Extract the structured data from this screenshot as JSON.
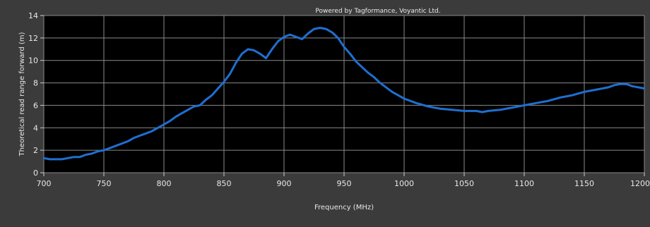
{
  "chart_data": {
    "type": "line",
    "credit": "Powered by Tagformance, Voyantic Ltd.",
    "xlabel": "Frequency (MHz)",
    "ylabel": "Theoretical read range forward (m)",
    "xlim": [
      700,
      1200
    ],
    "ylim": [
      0,
      14
    ],
    "xticks": [
      700,
      750,
      800,
      850,
      900,
      950,
      1000,
      1050,
      1100,
      1150,
      1200
    ],
    "yticks": [
      0,
      2,
      4,
      6,
      8,
      10,
      12,
      14
    ],
    "grid": true,
    "colors": {
      "line": "#1f6fd0",
      "plot_background": "#000000",
      "grid": "#8a8a8a",
      "frame": "#3b3b3b"
    },
    "series": [
      {
        "x": [
          700,
          705,
          710,
          715,
          720,
          725,
          730,
          735,
          740,
          745,
          750,
          755,
          760,
          765,
          770,
          775,
          780,
          785,
          790,
          795,
          800,
          805,
          810,
          815,
          820,
          825,
          830,
          835,
          840,
          845,
          850,
          855,
          860,
          865,
          870,
          875,
          880,
          885,
          890,
          895,
          900,
          905,
          910,
          915,
          920,
          925,
          930,
          935,
          940,
          945,
          950,
          955,
          960,
          965,
          970,
          975,
          980,
          985,
          990,
          995,
          1000,
          1010,
          1020,
          1030,
          1040,
          1050,
          1060,
          1065,
          1070,
          1080,
          1090,
          1100,
          1110,
          1120,
          1130,
          1140,
          1150,
          1160,
          1170,
          1175,
          1180,
          1185,
          1190,
          1195,
          1200
        ],
        "values": [
          1.3,
          1.2,
          1.2,
          1.2,
          1.3,
          1.4,
          1.4,
          1.6,
          1.7,
          1.9,
          2.0,
          2.2,
          2.4,
          2.6,
          2.8,
          3.1,
          3.3,
          3.5,
          3.7,
          4.0,
          4.3,
          4.6,
          5.0,
          5.3,
          5.6,
          5.9,
          6.0,
          6.5,
          6.9,
          7.5,
          8.1,
          8.8,
          9.8,
          10.6,
          11.0,
          10.9,
          10.6,
          10.2,
          11.0,
          11.7,
          12.1,
          12.3,
          12.1,
          11.9,
          12.4,
          12.8,
          12.9,
          12.8,
          12.5,
          12.0,
          11.2,
          10.6,
          9.9,
          9.4,
          8.9,
          8.5,
          8.0,
          7.6,
          7.2,
          6.9,
          6.6,
          6.2,
          5.9,
          5.7,
          5.6,
          5.5,
          5.5,
          5.4,
          5.5,
          5.6,
          5.8,
          6.0,
          6.2,
          6.4,
          6.7,
          6.9,
          7.2,
          7.4,
          7.6,
          7.8,
          7.9,
          7.9,
          7.7,
          7.6,
          7.5
        ]
      }
    ]
  }
}
